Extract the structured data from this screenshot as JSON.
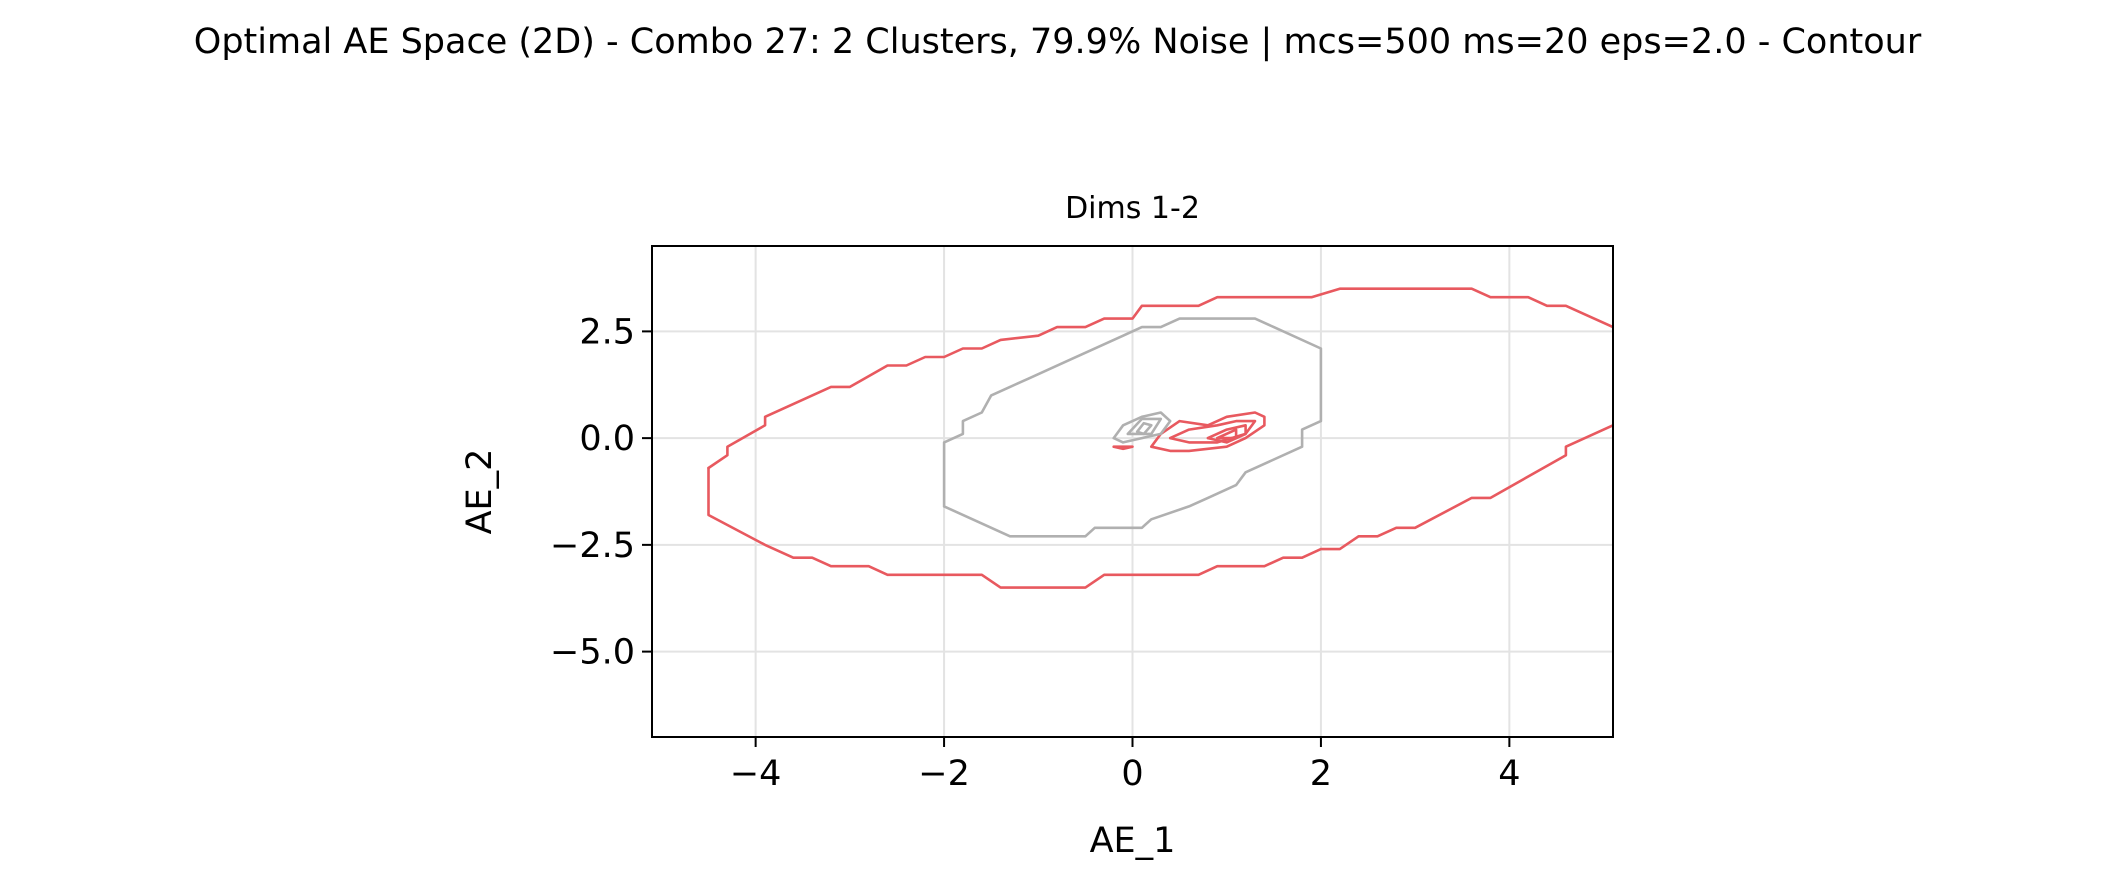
{
  "figure": {
    "title": "Optimal AE Space (2D) - Combo 27: 2 Clusters, 79.9% Noise | mcs=500 ms=20 eps=2.0 - Contour"
  },
  "chart_data": {
    "type": "contour",
    "title": "Dims 1-2",
    "xlabel": "AE_1",
    "ylabel": "AE_2",
    "xlim": [
      -5.1,
      5.1
    ],
    "ylim": [
      -7.0,
      4.5
    ],
    "xticks": [
      -4,
      -2,
      0,
      2,
      4
    ],
    "xtick_labels": [
      "−4",
      "−2",
      "0",
      "2",
      "4"
    ],
    "yticks": [
      2.5,
      0.0,
      -2.5,
      -5.0
    ],
    "ytick_labels": [
      "2.5",
      "0.0",
      "−2.5",
      "−5.0"
    ],
    "grid": true,
    "series": [
      {
        "color": "#e8595f",
        "contours": [
          [
            [
              -4.5,
              -0.7
            ],
            [
              -4.3,
              -0.4
            ],
            [
              -4.3,
              -0.2
            ],
            [
              -3.9,
              0.3
            ],
            [
              -3.9,
              0.5
            ],
            [
              -3.2,
              1.2
            ],
            [
              -3.0,
              1.2
            ],
            [
              -2.6,
              1.7
            ],
            [
              -2.4,
              1.7
            ],
            [
              -2.2,
              1.9
            ],
            [
              -2.0,
              1.9
            ],
            [
              -1.8,
              2.1
            ],
            [
              -1.6,
              2.1
            ],
            [
              -1.4,
              2.3
            ],
            [
              -1.0,
              2.4
            ],
            [
              -0.8,
              2.6
            ],
            [
              -0.5,
              2.6
            ],
            [
              -0.3,
              2.8
            ],
            [
              0.0,
              2.8
            ],
            [
              0.1,
              3.1
            ],
            [
              0.7,
              3.1
            ],
            [
              0.9,
              3.3
            ],
            [
              1.9,
              3.3
            ],
            [
              2.2,
              3.5
            ],
            [
              3.6,
              3.5
            ],
            [
              3.8,
              3.3
            ],
            [
              4.2,
              3.3
            ],
            [
              4.4,
              3.1
            ],
            [
              4.6,
              3.1
            ],
            [
              4.8,
              2.9
            ],
            [
              5.1,
              2.6
            ]
          ],
          [
            [
              -4.5,
              -0.7
            ],
            [
              -4.5,
              -1.8
            ],
            [
              -3.9,
              -2.5
            ],
            [
              -3.6,
              -2.8
            ],
            [
              -3.4,
              -2.8
            ],
            [
              -3.2,
              -3.0
            ],
            [
              -2.8,
              -3.0
            ],
            [
              -2.6,
              -3.2
            ],
            [
              -1.6,
              -3.2
            ],
            [
              -1.4,
              -3.5
            ],
            [
              -0.5,
              -3.5
            ],
            [
              -0.3,
              -3.2
            ],
            [
              0.7,
              -3.2
            ],
            [
              0.9,
              -3.0
            ],
            [
              1.4,
              -3.0
            ],
            [
              1.6,
              -2.8
            ],
            [
              1.8,
              -2.8
            ],
            [
              2.0,
              -2.6
            ],
            [
              2.2,
              -2.6
            ],
            [
              2.4,
              -2.3
            ],
            [
              2.6,
              -2.3
            ],
            [
              2.8,
              -2.1
            ],
            [
              3.0,
              -2.1
            ],
            [
              3.6,
              -1.4
            ],
            [
              3.8,
              -1.4
            ],
            [
              4.6,
              -0.4
            ],
            [
              4.6,
              -0.2
            ],
            [
              5.1,
              0.3
            ]
          ],
          [
            [
              0.2,
              -0.2
            ],
            [
              0.3,
              0.1
            ],
            [
              0.5,
              0.4
            ],
            [
              0.8,
              0.3
            ],
            [
              1.0,
              0.5
            ],
            [
              1.3,
              0.6
            ],
            [
              1.4,
              0.5
            ],
            [
              1.4,
              0.3
            ],
            [
              1.2,
              0.0
            ],
            [
              1.0,
              -0.2
            ],
            [
              0.6,
              -0.3
            ],
            [
              0.4,
              -0.3
            ],
            [
              0.2,
              -0.2
            ]
          ],
          [
            [
              0.4,
              0.0
            ],
            [
              0.6,
              0.2
            ],
            [
              0.9,
              0.3
            ],
            [
              1.1,
              0.4
            ],
            [
              1.3,
              0.4
            ],
            [
              1.2,
              0.1
            ],
            [
              0.9,
              -0.1
            ],
            [
              0.6,
              -0.1
            ],
            [
              0.4,
              0.0
            ]
          ],
          [
            [
              0.8,
              0.0
            ],
            [
              1.0,
              0.2
            ],
            [
              1.2,
              0.3
            ],
            [
              1.2,
              0.1
            ],
            [
              1.0,
              -0.1
            ],
            [
              0.8,
              0.0
            ]
          ],
          [
            [
              0.9,
              0.0
            ],
            [
              1.1,
              0.2
            ],
            [
              1.1,
              0.0
            ],
            [
              0.9,
              0.0
            ]
          ],
          [
            [
              -0.2,
              -0.2
            ],
            [
              0.0,
              -0.2
            ],
            [
              -0.1,
              -0.25
            ],
            [
              -0.2,
              -0.2
            ]
          ]
        ]
      },
      {
        "color": "#b0b0b0",
        "contours": [
          [
            [
              -2.0,
              -1.6
            ],
            [
              -2.0,
              -0.1
            ],
            [
              -1.8,
              0.1
            ],
            [
              -1.8,
              0.4
            ],
            [
              -1.6,
              0.6
            ],
            [
              -1.5,
              1.0
            ],
            [
              -1.3,
              1.2
            ],
            [
              -1.1,
              1.4
            ],
            [
              -0.7,
              1.8
            ],
            [
              -0.1,
              2.4
            ],
            [
              0.1,
              2.6
            ],
            [
              0.3,
              2.6
            ],
            [
              0.5,
              2.8
            ],
            [
              1.3,
              2.8
            ],
            [
              1.5,
              2.6
            ],
            [
              2.0,
              2.1
            ],
            [
              2.0,
              0.4
            ],
            [
              1.8,
              0.2
            ],
            [
              1.8,
              -0.2
            ],
            [
              1.2,
              -0.8
            ],
            [
              1.1,
              -1.1
            ],
            [
              0.8,
              -1.4
            ],
            [
              0.6,
              -1.6
            ],
            [
              0.2,
              -1.9
            ],
            [
              0.1,
              -2.1
            ],
            [
              -0.3,
              -2.1
            ],
            [
              -0.4,
              -2.1
            ],
            [
              -0.5,
              -2.3
            ],
            [
              -1.3,
              -2.3
            ],
            [
              -2.0,
              -1.6
            ]
          ],
          [
            [
              -0.2,
              0.0
            ],
            [
              -0.1,
              0.3
            ],
            [
              0.1,
              0.5
            ],
            [
              0.3,
              0.6
            ],
            [
              0.4,
              0.4
            ],
            [
              0.3,
              0.1
            ],
            [
              0.1,
              0.0
            ],
            [
              -0.1,
              -0.1
            ],
            [
              -0.2,
              0.0
            ]
          ],
          [
            [
              -0.05,
              0.1
            ],
            [
              0.1,
              0.45
            ],
            [
              0.3,
              0.45
            ],
            [
              0.2,
              0.1
            ],
            [
              -0.05,
              0.1
            ]
          ],
          [
            [
              0.05,
              0.15
            ],
            [
              0.12,
              0.35
            ],
            [
              0.2,
              0.3
            ],
            [
              0.12,
              0.1
            ],
            [
              0.05,
              0.15
            ]
          ]
        ]
      }
    ]
  }
}
